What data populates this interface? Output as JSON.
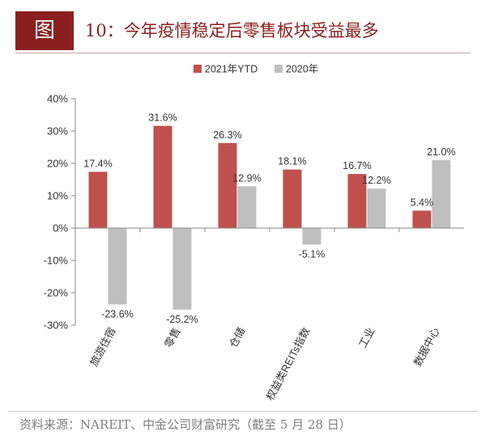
{
  "figure": {
    "badge": "图",
    "title": "10：今年疫情稳定后零售板块受益最多",
    "source": "资料来源：NAREIT、中金公司财富研究（截至 5 月 28 日）"
  },
  "chart_data": {
    "type": "bar",
    "categories": [
      "旅游住宿",
      "零售",
      "仓储",
      "权益类REITs指数",
      "工业",
      "数据中心"
    ],
    "series": [
      {
        "name": "2021年YTD",
        "color": "#c0504d",
        "values": [
          17.4,
          31.6,
          26.3,
          18.1,
          16.7,
          5.4
        ]
      },
      {
        "name": "2020年",
        "color": "#bfbfbf",
        "values": [
          -23.6,
          -25.2,
          12.9,
          -5.1,
          12.2,
          21.0
        ]
      }
    ],
    "ylim": [
      -30,
      40
    ],
    "yticks": [
      -30,
      -20,
      -10,
      0,
      10,
      20,
      30,
      40
    ],
    "value_format": "percent_1dp",
    "legend_position": "top-center",
    "grid": false
  }
}
